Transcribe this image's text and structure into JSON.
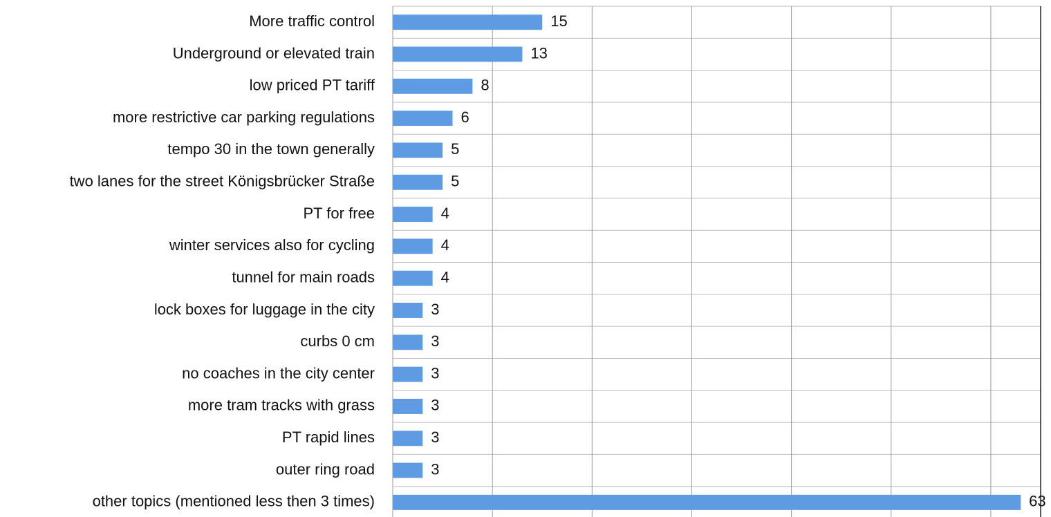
{
  "chart_data": {
    "type": "bar",
    "orientation": "horizontal",
    "categories": [
      "More traffic control",
      "Underground or elevated train",
      "low priced PT tariff",
      "more restrictive car parking regulations",
      "tempo 30 in the town generally",
      "two lanes for the street Königsbrücker Straße",
      "PT for free",
      "winter services also for cycling",
      "tunnel for main roads",
      "lock boxes for luggage in the city",
      "curbs 0 cm",
      "no coaches in the city center",
      "more tram tracks with grass",
      "PT rapid lines",
      "outer ring road",
      "other topics (mentioned less then 3 times)"
    ],
    "values": [
      15,
      13,
      8,
      6,
      5,
      5,
      4,
      4,
      4,
      3,
      3,
      3,
      3,
      3,
      3,
      63
    ],
    "color": "#5f9be3",
    "xlim": [
      0,
      65
    ],
    "xticks": [
      0,
      10,
      20,
      30,
      40,
      50,
      60
    ],
    "grid": true
  }
}
